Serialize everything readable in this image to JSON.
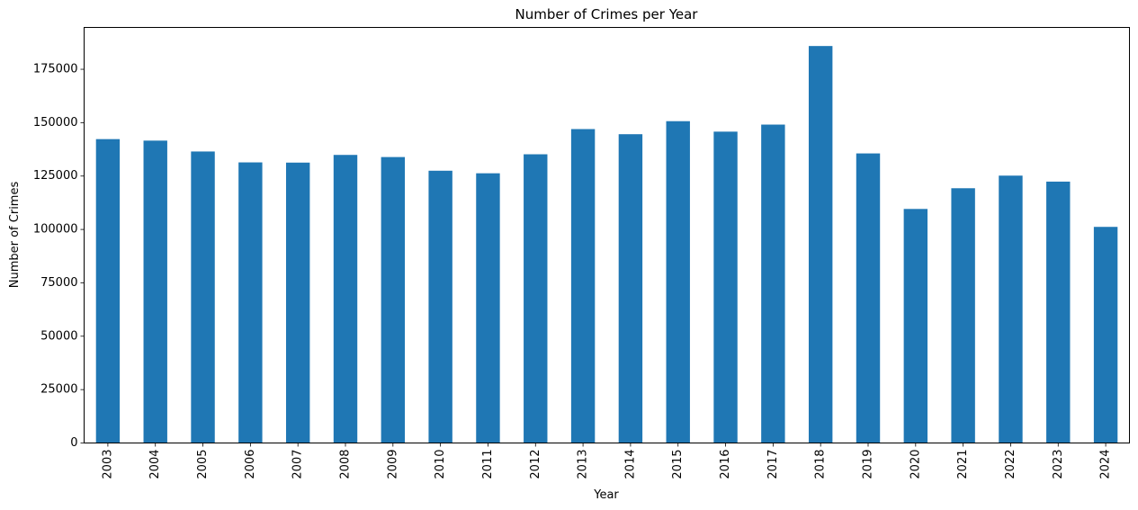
{
  "chart_data": {
    "type": "bar",
    "title": "Number of Crimes per Year",
    "xlabel": "Year",
    "ylabel": "Number of Crimes",
    "categories": [
      "2003",
      "2004",
      "2005",
      "2006",
      "2007",
      "2008",
      "2009",
      "2010",
      "2011",
      "2012",
      "2013",
      "2014",
      "2015",
      "2016",
      "2017",
      "2018",
      "2019",
      "2020",
      "2021",
      "2022",
      "2023",
      "2024"
    ],
    "values": [
      142300,
      141600,
      136500,
      131400,
      131300,
      134900,
      133900,
      127500,
      126300,
      135200,
      147000,
      144600,
      150700,
      145800,
      149100,
      185900,
      135600,
      109600,
      119300,
      125200,
      122400,
      101200
    ],
    "ylim": [
      0,
      194600
    ],
    "yticks": [
      0,
      25000,
      50000,
      75000,
      100000,
      125000,
      150000,
      175000
    ],
    "ytick_labels": [
      "0",
      "25000",
      "50000",
      "75000",
      "100000",
      "125000",
      "150000",
      "175000"
    ],
    "bar_color": "#1f77b4",
    "grid": false,
    "legend": "none"
  }
}
